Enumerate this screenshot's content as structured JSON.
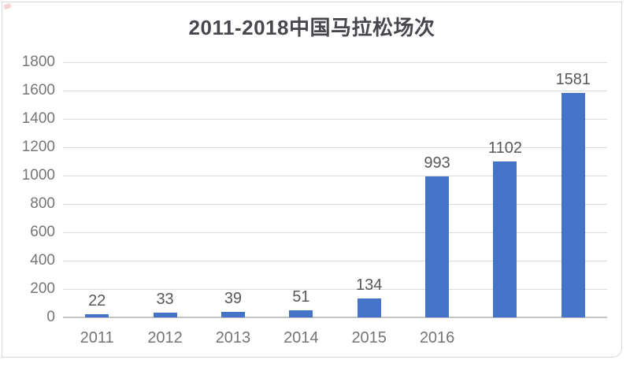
{
  "chart_data": {
    "type": "bar",
    "title": "2011-2018中国马拉松场次",
    "categories": [
      "2011",
      "2012",
      "2013",
      "2014",
      "2015",
      "2016",
      "",
      ""
    ],
    "values": [
      22,
      33,
      39,
      51,
      134,
      993,
      1102,
      1581
    ],
    "xlabel": "",
    "ylabel": "",
    "ylim": [
      0,
      1800
    ],
    "ytick_step": 200,
    "grid": true,
    "legend": false,
    "data_labels_shown": true,
    "colors": {
      "bar": "#4573c8",
      "gridline": "#dadada",
      "axis_line": "#c3c3c3",
      "tick_label": "#757578",
      "data_label": "#58585c",
      "title": "#47484d",
      "card_border": "#d9d9d9",
      "background": "#ffffff"
    }
  }
}
